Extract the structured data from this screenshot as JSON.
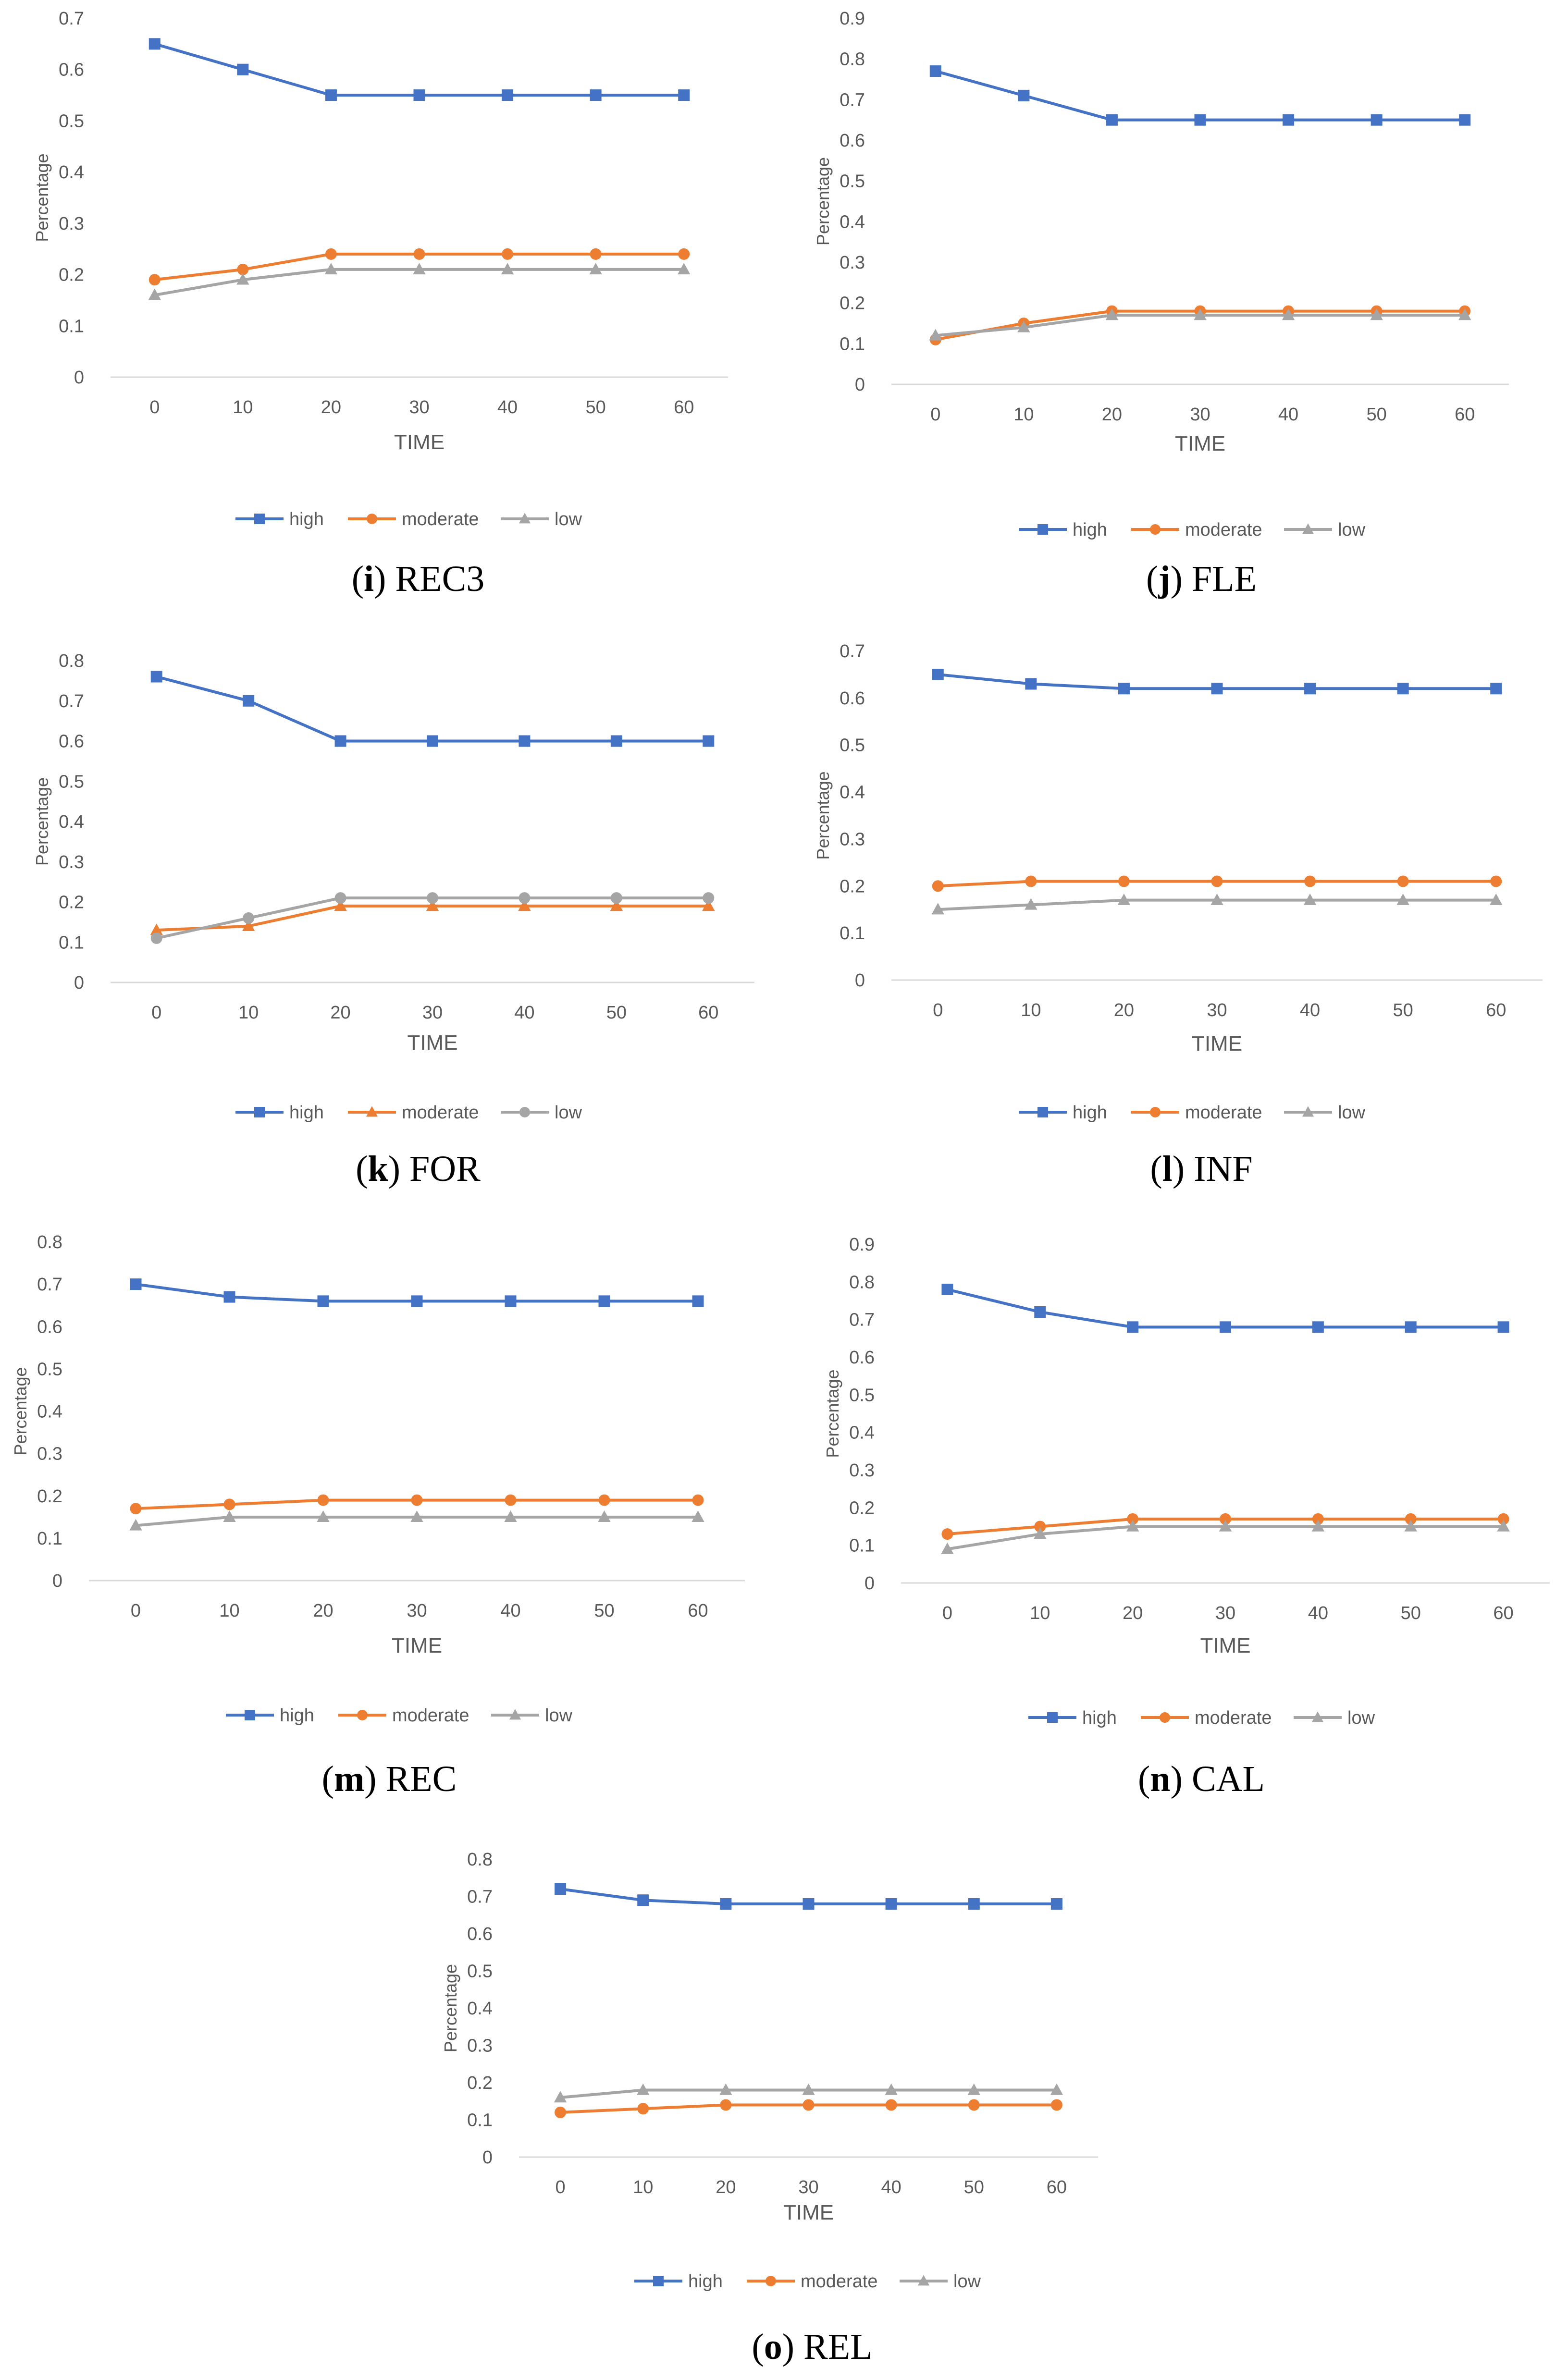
{
  "chart_data": [
    {
      "id": "i",
      "type": "line",
      "caption_letter": "i",
      "caption_name": "REC3",
      "xlabel": "TIME",
      "ylabel": "Percentage",
      "x": [
        0,
        10,
        20,
        30,
        40,
        50,
        60
      ],
      "xticks": [
        "0",
        "10",
        "20",
        "30",
        "40",
        "50",
        "60"
      ],
      "ylim": [
        0,
        0.7
      ],
      "yticks": [
        "0",
        "0.1",
        "0.2",
        "0.3",
        "0.4",
        "0.5",
        "0.6",
        "0.7"
      ],
      "series": [
        {
          "name": "high",
          "color": "#4472c4",
          "marker": "square",
          "values": [
            0.65,
            0.6,
            0.55,
            0.55,
            0.55,
            0.55,
            0.55
          ]
        },
        {
          "name": "moderate",
          "color": "#ed7d31",
          "marker": "circle",
          "values": [
            0.19,
            0.21,
            0.24,
            0.24,
            0.24,
            0.24,
            0.24
          ]
        },
        {
          "name": "low",
          "color": "#a5a5a5",
          "marker": "triangle",
          "values": [
            0.16,
            0.19,
            0.21,
            0.21,
            0.21,
            0.21,
            0.21
          ]
        }
      ]
    },
    {
      "id": "j",
      "type": "line",
      "caption_letter": "j",
      "caption_name": "FLE",
      "xlabel": "TIME",
      "ylabel": "Percentage",
      "x": [
        0,
        10,
        20,
        30,
        40,
        50,
        60
      ],
      "xticks": [
        "0",
        "10",
        "20",
        "30",
        "40",
        "50",
        "60"
      ],
      "ylim": [
        0,
        0.9
      ],
      "yticks": [
        "0",
        "0.1",
        "0.2",
        "0.3",
        "0.4",
        "0.5",
        "0.6",
        "0.7",
        "0.8",
        "0.9"
      ],
      "series": [
        {
          "name": "high",
          "color": "#4472c4",
          "marker": "square",
          "values": [
            0.77,
            0.71,
            0.65,
            0.65,
            0.65,
            0.65,
            0.65
          ]
        },
        {
          "name": "moderate",
          "color": "#ed7d31",
          "marker": "circle",
          "values": [
            0.11,
            0.15,
            0.18,
            0.18,
            0.18,
            0.18,
            0.18
          ]
        },
        {
          "name": "low",
          "color": "#a5a5a5",
          "marker": "triangle",
          "values": [
            0.12,
            0.14,
            0.17,
            0.17,
            0.17,
            0.17,
            0.17
          ]
        }
      ]
    },
    {
      "id": "k",
      "type": "line",
      "caption_letter": "k",
      "caption_name": "FOR",
      "xlabel": "TIME",
      "ylabel": "Percentage",
      "x": [
        0,
        10,
        20,
        30,
        40,
        50,
        60
      ],
      "xticks": [
        "0",
        "10",
        "20",
        "30",
        "40",
        "50",
        "60"
      ],
      "ylim": [
        0,
        0.8
      ],
      "yticks": [
        "0",
        "0.1",
        "0.2",
        "0.3",
        "0.4",
        "0.5",
        "0.6",
        "0.7",
        "0.8"
      ],
      "series": [
        {
          "name": "high",
          "color": "#4472c4",
          "marker": "square",
          "values": [
            0.76,
            0.7,
            0.6,
            0.6,
            0.6,
            0.6,
            0.6
          ]
        },
        {
          "name": "moderate",
          "color": "#ed7d31",
          "marker": "triangle",
          "values": [
            0.13,
            0.14,
            0.19,
            0.19,
            0.19,
            0.19,
            0.19
          ]
        },
        {
          "name": "low",
          "color": "#a5a5a5",
          "marker": "circle",
          "values": [
            0.11,
            0.16,
            0.21,
            0.21,
            0.21,
            0.21,
            0.21
          ]
        }
      ]
    },
    {
      "id": "l",
      "type": "line",
      "caption_letter": "l",
      "caption_name": "INF",
      "xlabel": "TIME",
      "ylabel": "Percentage",
      "x": [
        0,
        10,
        20,
        30,
        40,
        50,
        60
      ],
      "xticks": [
        "0",
        "10",
        "20",
        "30",
        "40",
        "50",
        "60"
      ],
      "ylim": [
        0,
        0.7
      ],
      "yticks": [
        "0",
        "0.1",
        "0.2",
        "0.3",
        "0.4",
        "0.5",
        "0.6",
        "0.7"
      ],
      "series": [
        {
          "name": "high",
          "color": "#4472c4",
          "marker": "square",
          "values": [
            0.65,
            0.63,
            0.62,
            0.62,
            0.62,
            0.62,
            0.62
          ]
        },
        {
          "name": "moderate",
          "color": "#ed7d31",
          "marker": "circle",
          "values": [
            0.2,
            0.21,
            0.21,
            0.21,
            0.21,
            0.21,
            0.21
          ]
        },
        {
          "name": "low",
          "color": "#a5a5a5",
          "marker": "triangle",
          "values": [
            0.15,
            0.16,
            0.17,
            0.17,
            0.17,
            0.17,
            0.17
          ]
        }
      ]
    },
    {
      "id": "m",
      "type": "line",
      "caption_letter": "m",
      "caption_name": "REC",
      "xlabel": "TIME",
      "ylabel": "Percentage",
      "x": [
        0,
        10,
        20,
        30,
        40,
        50,
        60
      ],
      "xticks": [
        "0",
        "10",
        "20",
        "30",
        "40",
        "50",
        "60"
      ],
      "ylim": [
        0,
        0.8
      ],
      "yticks": [
        "0",
        "0.1",
        "0.2",
        "0.3",
        "0.4",
        "0.5",
        "0.6",
        "0.7",
        "0.8"
      ],
      "series": [
        {
          "name": "high",
          "color": "#4472c4",
          "marker": "square",
          "values": [
            0.7,
            0.67,
            0.66,
            0.66,
            0.66,
            0.66,
            0.66
          ]
        },
        {
          "name": "moderate",
          "color": "#ed7d31",
          "marker": "circle",
          "values": [
            0.17,
            0.18,
            0.19,
            0.19,
            0.19,
            0.19,
            0.19
          ]
        },
        {
          "name": "low",
          "color": "#a5a5a5",
          "marker": "triangle",
          "values": [
            0.13,
            0.15,
            0.15,
            0.15,
            0.15,
            0.15,
            0.15
          ]
        }
      ]
    },
    {
      "id": "n",
      "type": "line",
      "caption_letter": "n",
      "caption_name": "CAL",
      "xlabel": "TIME",
      "ylabel": "Percentage",
      "x": [
        0,
        10,
        20,
        30,
        40,
        50,
        60
      ],
      "xticks": [
        "0",
        "10",
        "20",
        "30",
        "40",
        "50",
        "60"
      ],
      "ylim": [
        0,
        0.9
      ],
      "yticks": [
        "0",
        "0.1",
        "0.2",
        "0.3",
        "0.4",
        "0.5",
        "0.6",
        "0.7",
        "0.8",
        "0.9"
      ],
      "series": [
        {
          "name": "high",
          "color": "#4472c4",
          "marker": "square",
          "values": [
            0.78,
            0.72,
            0.68,
            0.68,
            0.68,
            0.68,
            0.68
          ]
        },
        {
          "name": "moderate",
          "color": "#ed7d31",
          "marker": "circle",
          "values": [
            0.13,
            0.15,
            0.17,
            0.17,
            0.17,
            0.17,
            0.17
          ]
        },
        {
          "name": "low",
          "color": "#a5a5a5",
          "marker": "triangle",
          "values": [
            0.09,
            0.13,
            0.15,
            0.15,
            0.15,
            0.15,
            0.15
          ]
        }
      ]
    },
    {
      "id": "o",
      "type": "line",
      "caption_letter": "o",
      "caption_name": "REL",
      "xlabel": "TIME",
      "ylabel": "Percentage",
      "x": [
        0,
        10,
        20,
        30,
        40,
        50,
        60
      ],
      "xticks": [
        "0",
        "10",
        "20",
        "30",
        "40",
        "50",
        "60"
      ],
      "ylim": [
        0,
        0.8
      ],
      "yticks": [
        "0",
        "0.1",
        "0.2",
        "0.3",
        "0.4",
        "0.5",
        "0.6",
        "0.7",
        "0.8"
      ],
      "series": [
        {
          "name": "high",
          "color": "#4472c4",
          "marker": "square",
          "values": [
            0.72,
            0.69,
            0.68,
            0.68,
            0.68,
            0.68,
            0.68
          ]
        },
        {
          "name": "moderate",
          "color": "#ed7d31",
          "marker": "circle",
          "values": [
            0.12,
            0.13,
            0.14,
            0.14,
            0.14,
            0.14,
            0.14
          ]
        },
        {
          "name": "low",
          "color": "#a5a5a5",
          "marker": "triangle",
          "values": [
            0.16,
            0.18,
            0.18,
            0.18,
            0.18,
            0.18,
            0.18
          ]
        }
      ]
    }
  ]
}
